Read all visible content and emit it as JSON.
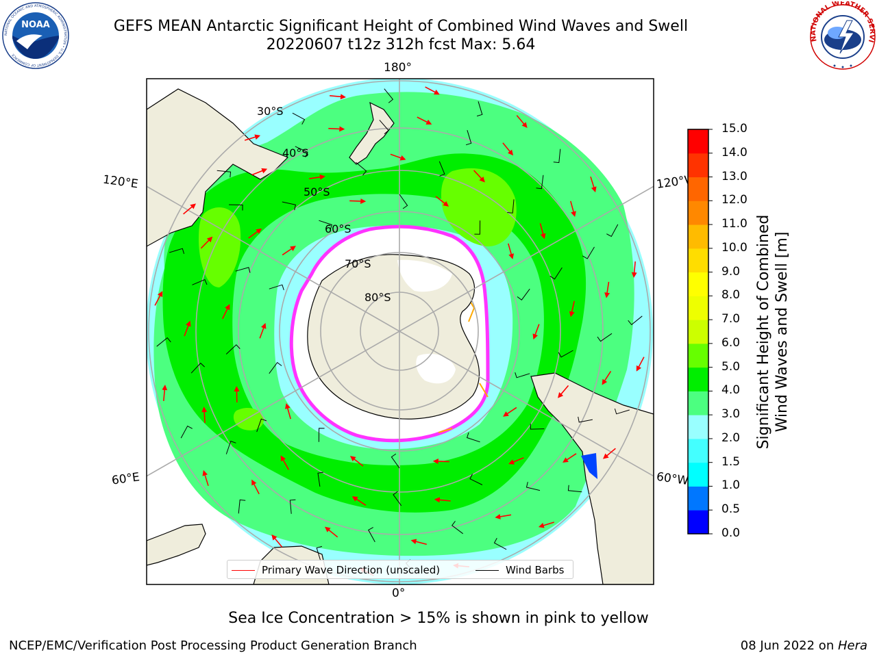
{
  "title": {
    "line1": "GEFS MEAN Antarctic Significant Height of Combined Wind Waves and Swell",
    "line2": "20220607 t12z 312h fcst   Max: 5.64"
  },
  "logos": {
    "left": {
      "name": "noaa-logo",
      "text": "NOAA",
      "ring_text": "NATIONAL OCEANIC AND ATMOSPHERIC ADMINISTRATION • U.S. DEPARTMENT OF COMMERCE"
    },
    "right": {
      "name": "nws-logo",
      "ring_text": "NATIONAL WEATHER SERVICE"
    }
  },
  "map": {
    "projection": "south-polar-stereographic",
    "longitude_labels": {
      "top": "180°",
      "bottom": "0°",
      "left_upper": "120°E",
      "left_lower": "60°E",
      "right_upper": "120°W",
      "right_lower": "60°W"
    },
    "latitude_labels": [
      "30°S",
      "40°S",
      "50°S",
      "60°S",
      "70°S",
      "80°S"
    ],
    "colors": {
      "land": "#efeddc",
      "ocean_lt3": "#99ffff",
      "wave_3_4": "#4cff80",
      "wave_4_5": "#00ee00",
      "wave_5_6": "#66ff00",
      "sea_ice": "#ff33ff",
      "ice_edge_high": "#ffaa00",
      "wave_arrow": "#ff0000",
      "wind_barb": "#000000",
      "grid": "#aaaaaa"
    }
  },
  "legend": {
    "primary_wave": "Primary Wave Direction (unscaled)",
    "wind_barbs": "Wind Barbs"
  },
  "colorbar": {
    "label_line1": "Significant Height of Combined",
    "label_line2": "Wind Waves and Swell [m]",
    "bounds": [
      0.0,
      0.5,
      1.0,
      1.5,
      2.0,
      3.0,
      4.0,
      5.0,
      6.0,
      7.0,
      8.0,
      9.0,
      10.0,
      11.0,
      12.0,
      13.0,
      14.0,
      15.0
    ],
    "tick_labels": [
      "0.0",
      "0.5",
      "1.0",
      "1.5",
      "2.0",
      "3.0",
      "4.0",
      "5.0",
      "6.0",
      "7.0",
      "8.0",
      "9.0",
      "10.0",
      "11.0",
      "12.0",
      "13.0",
      "14.0",
      "15.0"
    ],
    "colors": [
      "#0000ff",
      "#0077ff",
      "#00ffff",
      "#44ffff",
      "#99ffff",
      "#4cff80",
      "#00ee00",
      "#66ff00",
      "#ccff00",
      "#eeff00",
      "#ffff00",
      "#ffdd00",
      "#ffbb00",
      "#ff8800",
      "#ff6600",
      "#ff3300",
      "#ff0000"
    ]
  },
  "notes": {
    "sea_ice": "Sea Ice Concentration > 15% is shown in pink to yellow",
    "footer_left": "NCEP/EMC/Verification Post Processing Product Generation Branch",
    "footer_right_date": "08 Jun 2022 on ",
    "footer_right_host": "Hera"
  }
}
